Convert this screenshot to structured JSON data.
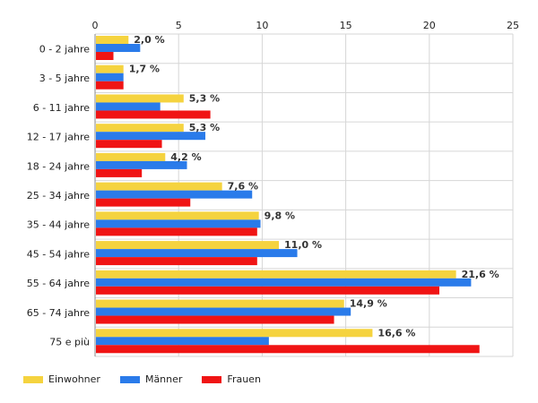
{
  "chart_data": {
    "type": "bar",
    "orientation": "horizontal",
    "categories": [
      "0 - 2 jahre",
      "3 - 5 jahre",
      "6 - 11 jahre",
      "12 - 17 jahre",
      "18 - 24 jahre",
      "25 - 34 jahre",
      "35 - 44 jahre",
      "45 - 54 jahre",
      "55 - 64 jahre",
      "65 - 74 jahre",
      "75 e più"
    ],
    "series": [
      {
        "name": "Einwohner",
        "color": "#f5d33f",
        "values": [
          2.0,
          1.7,
          5.3,
          5.3,
          4.2,
          7.6,
          9.8,
          11.0,
          21.6,
          14.9,
          16.6
        ]
      },
      {
        "name": "Männer",
        "color": "#2a7bea",
        "values": [
          2.7,
          1.7,
          3.9,
          6.6,
          5.5,
          9.4,
          9.9,
          12.1,
          22.5,
          15.3,
          10.4
        ]
      },
      {
        "name": "Frauen",
        "color": "#f01414",
        "values": [
          1.1,
          1.7,
          6.9,
          4.0,
          2.8,
          5.7,
          9.7,
          9.7,
          20.6,
          14.3,
          23.0
        ]
      }
    ],
    "data_labels": [
      "2,0 %",
      "1,7 %",
      "5,3 %",
      "5,3 %",
      "4,2 %",
      "7,6 %",
      "9,8 %",
      "11,0 %",
      "21,6 %",
      "14,9 %",
      "16,6 %"
    ],
    "x_ticks": [
      "0",
      "5",
      "10",
      "15",
      "20",
      "25"
    ],
    "xlim": [
      0,
      25
    ],
    "grid": true,
    "legend_position": "bottom-left",
    "title": "",
    "xlabel": "",
    "ylabel": ""
  }
}
